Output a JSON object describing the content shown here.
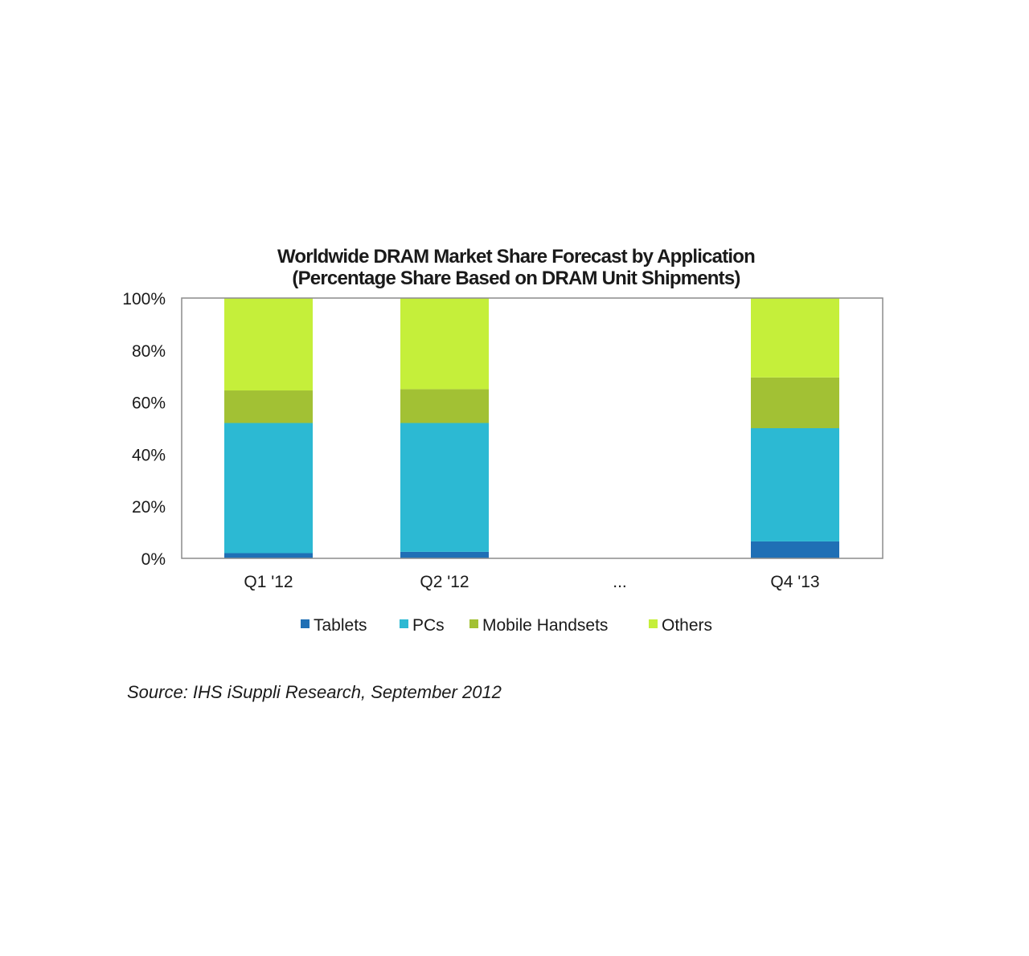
{
  "chart_data": {
    "type": "bar",
    "stacked": true,
    "title": "Worldwide DRAM Market Share Forecast by Application",
    "subtitle": "(Percentage Share Based on DRAM Unit Shipments)",
    "categories": [
      "Q1 '12",
      "Q2  '12",
      "...",
      "Q4 '13"
    ],
    "series": [
      {
        "name": "Tablets",
        "color": "#1f6fb5",
        "values": [
          2,
          2.5,
          null,
          6.5
        ]
      },
      {
        "name": "PCs",
        "color": "#2cb9d3",
        "values": [
          50,
          49.5,
          null,
          43.5
        ]
      },
      {
        "name": "Mobile Handsets",
        "color": "#a2c134",
        "values": [
          12.5,
          13,
          null,
          19.5
        ]
      },
      {
        "name": "Others",
        "color": "#c5ef3a",
        "values": [
          35.5,
          35,
          null,
          30.5
        ]
      }
    ],
    "ylim": [
      0,
      100
    ],
    "yticks": [
      "0%",
      "20%",
      "40%",
      "60%",
      "80%",
      "100%"
    ],
    "xlabel": "",
    "ylabel": "",
    "grid": false,
    "legend_position": "bottom"
  },
  "source": "Source: IHS iSuppli Research, September 2012"
}
